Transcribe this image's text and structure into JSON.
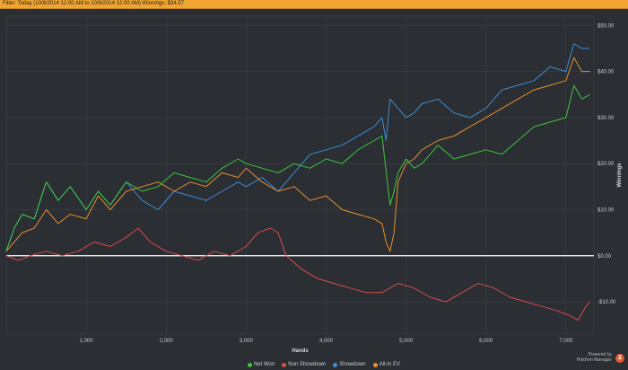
{
  "filter": {
    "text": "Filter: Today (10/8/2014 12:00 AM to 10/9/2014 12:00 AM) Winnings: $34.57"
  },
  "brand": {
    "powered": "Powered by",
    "name": "Hold'em Manager"
  },
  "colors": {
    "background": "#2b2e33",
    "grid": "#3c4047",
    "zero_line": "#ffffff",
    "net_won": "#3ec63e",
    "non_showdown": "#d94c4c",
    "showdown": "#3d8ed8",
    "all_in_ev": "#e8902f"
  },
  "chart_data": {
    "type": "line",
    "xlabel": "Hands",
    "ylabel": "Winnings",
    "xlim": [
      0,
      7350
    ],
    "ylim": [
      -17,
      52
    ],
    "x_ticks": [
      1000,
      2000,
      3000,
      4000,
      5000,
      6000,
      7000
    ],
    "x_tick_labels": [
      "1,000",
      "2,000",
      "3,000",
      "4,000",
      "5,000",
      "6,000",
      "7,000"
    ],
    "y_ticks": [
      50,
      40,
      30,
      20,
      10,
      0,
      -10
    ],
    "y_tick_labels": [
      "$50.00",
      "$40.00",
      "$30.00",
      "$20.00",
      "$10.00",
      "$0.00",
      "-$10.00"
    ],
    "grid": true,
    "legend_position": "bottom",
    "series": [
      {
        "name": "Net Won",
        "color": "#3ec63e",
        "x": [
          0,
          100,
          200,
          350,
          500,
          650,
          800,
          1000,
          1150,
          1300,
          1500,
          1700,
          1900,
          2100,
          2300,
          2500,
          2700,
          2900,
          3000,
          3200,
          3400,
          3600,
          3800,
          4000,
          4200,
          4400,
          4600,
          4700,
          4800,
          4850,
          4900,
          5000,
          5100,
          5200,
          5400,
          5600,
          5800,
          6000,
          6200,
          6400,
          6600,
          6800,
          7000,
          7100,
          7200,
          7300
        ],
        "values": [
          1,
          6,
          9,
          8,
          16,
          12,
          15,
          10,
          14,
          11,
          16,
          14,
          15,
          18,
          17,
          16,
          19,
          21,
          20,
          19,
          18,
          20,
          19,
          21,
          20,
          23,
          25,
          26,
          11,
          14,
          18,
          21,
          19,
          20,
          24,
          21,
          22,
          23,
          22,
          25,
          28,
          29,
          30,
          37,
          34,
          35
        ]
      },
      {
        "name": "Non Showdown",
        "color": "#d94c4c",
        "x": [
          0,
          150,
          300,
          500,
          700,
          900,
          1100,
          1300,
          1500,
          1650,
          1800,
          2000,
          2200,
          2400,
          2600,
          2800,
          3000,
          3150,
          3300,
          3400,
          3500,
          3700,
          3900,
          4100,
          4300,
          4500,
          4700,
          4900,
          5100,
          5300,
          5500,
          5700,
          5900,
          6100,
          6300,
          6500,
          6700,
          6900,
          7050,
          7150,
          7250,
          7300
        ],
        "values": [
          0,
          -1,
          0,
          1,
          0,
          1,
          3,
          2,
          4,
          6,
          3,
          1,
          0,
          -1,
          1,
          0,
          2,
          5,
          6,
          5,
          0,
          -3,
          -5,
          -6,
          -7,
          -8,
          -8,
          -6,
          -7,
          -9,
          -10,
          -8,
          -6,
          -7,
          -9,
          -10,
          -11,
          -12,
          -13,
          -14,
          -11,
          -10
        ]
      },
      {
        "name": "Showdown",
        "color": "#3d8ed8",
        "x": [
          0,
          100,
          200,
          350,
          500,
          650,
          800,
          1000,
          1150,
          1300,
          1500,
          1700,
          1900,
          2100,
          2300,
          2500,
          2700,
          2900,
          3000,
          3200,
          3400,
          3600,
          3800,
          4000,
          4200,
          4400,
          4600,
          4700,
          4750,
          4800,
          4900,
          5000,
          5100,
          5200,
          5400,
          5600,
          5800,
          6000,
          6200,
          6400,
          6600,
          6800,
          7000,
          7100,
          7200,
          7300
        ],
        "values": [
          1,
          6,
          9,
          8,
          16,
          12,
          15,
          10,
          14,
          11,
          16,
          12,
          10,
          14,
          13,
          12,
          14,
          16,
          15,
          17,
          14,
          18,
          22,
          23,
          24,
          26,
          28,
          30,
          25,
          34,
          32,
          30,
          31,
          33,
          34,
          31,
          30,
          32,
          36,
          37,
          38,
          41,
          40,
          46,
          45,
          45
        ]
      },
      {
        "name": "All-In EV",
        "color": "#e8902f",
        "x": [
          0,
          100,
          200,
          350,
          500,
          650,
          800,
          1000,
          1150,
          1300,
          1500,
          1700,
          1900,
          2100,
          2300,
          2500,
          2700,
          2900,
          3000,
          3200,
          3400,
          3600,
          3800,
          4000,
          4200,
          4400,
          4600,
          4700,
          4750,
          4800,
          4850,
          4900,
          5000,
          5100,
          5200,
          5400,
          5600,
          5800,
          6000,
          6200,
          6400,
          6600,
          6800,
          7000,
          7100,
          7200,
          7300
        ],
        "values": [
          1,
          3,
          5,
          6,
          10,
          7,
          9,
          8,
          13,
          10,
          14,
          15,
          16,
          14,
          16,
          15,
          18,
          17,
          19,
          16,
          14,
          15,
          12,
          13,
          10,
          9,
          8,
          7,
          3,
          1,
          5,
          16,
          20,
          21,
          23,
          25,
          26,
          28,
          30,
          32,
          34,
          36,
          37,
          38,
          43,
          40,
          40
        ]
      }
    ]
  }
}
